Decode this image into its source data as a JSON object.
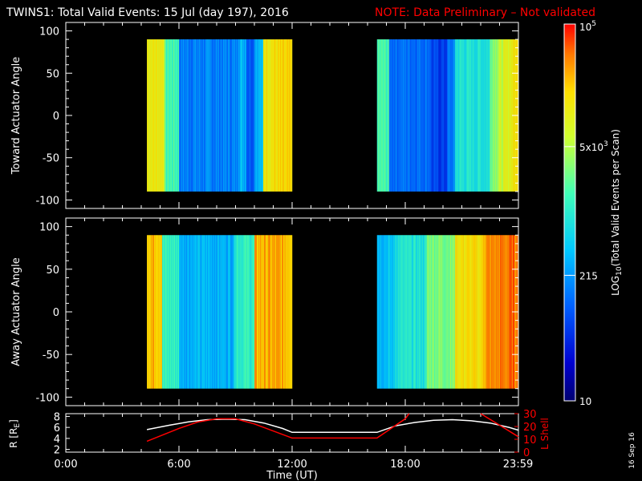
{
  "header": {
    "title": "TWINS1: Total Valid Events: 15 Jul (day 197), 2016",
    "note": "NOTE: Data Preliminary – Not validated"
  },
  "footer": {
    "date_stamp": "16 Sep 16"
  },
  "colors": {
    "background": "#000000",
    "note": "#ff0000",
    "orbit_r": "#ffffff",
    "orbit_lshell": "#ff0000"
  },
  "chart_data": [
    {
      "type": "heatmap",
      "name": "toward",
      "ylabel": "Toward Actuator Angle",
      "ylim": [
        -110,
        110
      ],
      "yticks": [
        "100",
        "50",
        "0",
        "-50",
        "-100"
      ],
      "yticks_values": [
        100,
        50,
        0,
        -50,
        -100
      ],
      "xlim_hours": [
        0,
        24
      ],
      "data_y_range": [
        -90,
        90
      ],
      "data_x_intervals_hours": [
        [
          4.3,
          12.0
        ],
        [
          16.5,
          24.0
        ]
      ]
    },
    {
      "type": "heatmap",
      "name": "away",
      "ylabel": "Away Actuator Angle",
      "ylim": [
        -110,
        110
      ],
      "yticks": [
        "100",
        "50",
        "0",
        "-50",
        "-100"
      ],
      "yticks_values": [
        100,
        50,
        0,
        -50,
        -100
      ],
      "xlim_hours": [
        0,
        24
      ],
      "data_y_range": [
        -90,
        90
      ],
      "data_x_intervals_hours": [
        [
          4.3,
          12.0
        ],
        [
          16.5,
          24.0
        ]
      ]
    },
    {
      "type": "line",
      "name": "orbit",
      "xlabel": "Time (UT)",
      "xticks": [
        "0:00",
        "6:00",
        "12:00",
        "18:00",
        "23:59"
      ],
      "xticks_values": [
        0,
        6,
        12,
        18,
        23.98
      ],
      "xlim_hours": [
        0,
        24
      ],
      "ylabel_left": "R [Re]",
      "ylabel_left_main": "R [R",
      "ylabel_left_sub": "E",
      "ylabel_left_end": "]",
      "ylim_left": [
        1.5,
        8.5
      ],
      "yticks_left": [
        "8",
        "6",
        "4",
        "2"
      ],
      "yticks_left_values": [
        8,
        6,
        4,
        2
      ],
      "ylabel_right": "L Shell",
      "ylim_right": [
        0,
        30
      ],
      "yticks_right": [
        "30",
        "20",
        "10",
        "0"
      ],
      "yticks_right_values": [
        30,
        20,
        10,
        0
      ],
      "series": [
        {
          "name": "R",
          "axis": "left",
          "x": [
            4.3,
            5.5,
            6.5,
            7.5,
            8.5,
            9.5,
            10.5,
            11.5,
            12.0,
            16.5,
            17.5,
            18.5,
            19.5,
            20.5,
            21.5,
            22.5,
            23.5,
            24.0
          ],
          "y": [
            5.6,
            6.4,
            7.0,
            7.4,
            7.5,
            7.4,
            6.8,
            5.8,
            5.1,
            5.1,
            6.3,
            6.9,
            7.3,
            7.4,
            7.2,
            6.8,
            6.0,
            5.5
          ]
        },
        {
          "name": "L Shell",
          "axis": "right",
          "x": [
            4.3,
            6.0,
            7.0,
            8.0,
            9.0,
            10.0,
            12.0,
            16.5,
            18.0,
            18.2
          ],
          "y": [
            8.5,
            18.5,
            23.5,
            26.0,
            26.0,
            22.0,
            11.0,
            11.0,
            26.0,
            30.0
          ]
        },
        {
          "name": "L Shell (segment 2)",
          "axis": "right",
          "x": [
            22.0,
            24.0
          ],
          "y": [
            30.0,
            12.0
          ]
        }
      ]
    }
  ],
  "colorbar": {
    "label_main": "LOG",
    "label_sub": "10",
    "label_rest": "(Total Valid Events per Scan)",
    "range": [
      10,
      100000
    ],
    "scale": "log",
    "ticks": [
      {
        "value": 100000,
        "base": "10",
        "exp": "5"
      },
      {
        "value": 5000,
        "base": "5x10",
        "exp": "3"
      },
      {
        "value": 215,
        "base": "215",
        "exp": ""
      },
      {
        "value": 10,
        "base": "10",
        "exp": ""
      }
    ]
  }
}
